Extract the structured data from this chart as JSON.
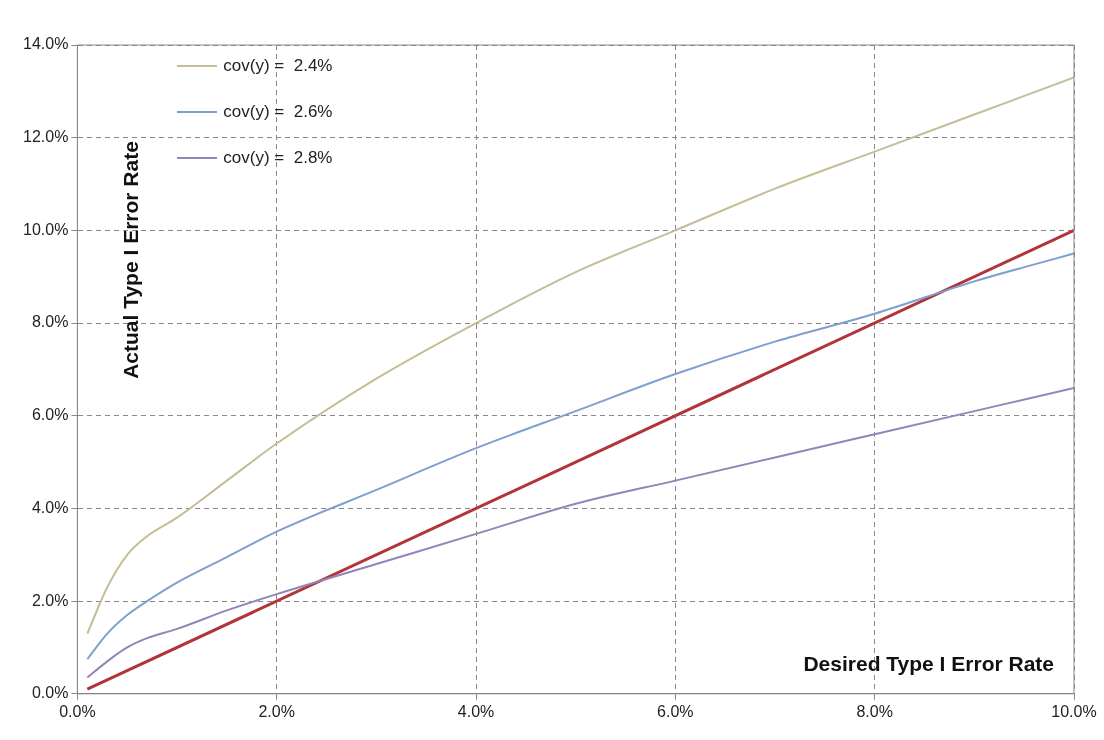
{
  "chart_data": {
    "type": "line",
    "xlabel": "Desired Type I Error Rate",
    "ylabel": "Actual Type I Error Rate",
    "xlim": [
      0,
      10
    ],
    "ylim": [
      0,
      14
    ],
    "xticks": [
      {
        "value": 0,
        "label": "0.0%"
      },
      {
        "value": 2,
        "label": "2.0%"
      },
      {
        "value": 4,
        "label": "4.0%"
      },
      {
        "value": 6,
        "label": "6.0%"
      },
      {
        "value": 8,
        "label": "8.0%"
      },
      {
        "value": 10,
        "label": "10.0%"
      }
    ],
    "yticks": [
      {
        "value": 0,
        "label": "0.0%"
      },
      {
        "value": 2,
        "label": "2.0%"
      },
      {
        "value": 4,
        "label": "4.0%"
      },
      {
        "value": 6,
        "label": "6.0%"
      },
      {
        "value": 8,
        "label": "8.0%"
      },
      {
        "value": 10,
        "label": "10.0%"
      },
      {
        "value": 12,
        "label": "12.0%"
      },
      {
        "value": 14,
        "label": "14.0%"
      }
    ],
    "grid": true,
    "legend": "top left",
    "marker": "none",
    "line_style": "solid",
    "series": [
      {
        "name": "cov(y) =  2.4%",
        "color": "#c4bd97",
        "x": [
          0.1,
          0.3,
          0.5,
          0.7,
          1,
          1.5,
          2,
          3,
          4,
          5,
          6,
          7,
          8,
          9,
          10
        ],
        "values": [
          1.3,
          2.3,
          3.0,
          3.4,
          3.8,
          4.6,
          5.4,
          6.8,
          8.0,
          9.1,
          10.0,
          10.9,
          11.7,
          12.5,
          13.3
        ]
      },
      {
        "name": "cov(y) =  2.6%",
        "color": "#7f9fcf",
        "x": [
          0.1,
          0.3,
          0.5,
          0.7,
          1,
          1.5,
          2,
          3,
          4,
          5,
          6,
          7,
          8,
          9,
          10
        ],
        "values": [
          0.75,
          1.3,
          1.7,
          2.0,
          2.4,
          2.95,
          3.5,
          4.4,
          5.3,
          6.1,
          6.9,
          7.6,
          8.2,
          8.9,
          9.5
        ]
      },
      {
        "name": "cov(y) =  2.8%",
        "color": "#9484b8",
        "x": [
          0.1,
          0.3,
          0.5,
          0.7,
          1,
          1.5,
          2,
          3,
          4,
          5,
          6,
          7,
          8,
          9,
          10
        ],
        "values": [
          0.35,
          0.7,
          1.0,
          1.2,
          1.4,
          1.8,
          2.15,
          2.8,
          3.45,
          4.1,
          4.6,
          5.1,
          5.6,
          6.1,
          6.6
        ]
      },
      {
        "color": "#b0353a",
        "x": [
          0.1,
          10
        ],
        "values": [
          0.1,
          10
        ]
      }
    ]
  }
}
